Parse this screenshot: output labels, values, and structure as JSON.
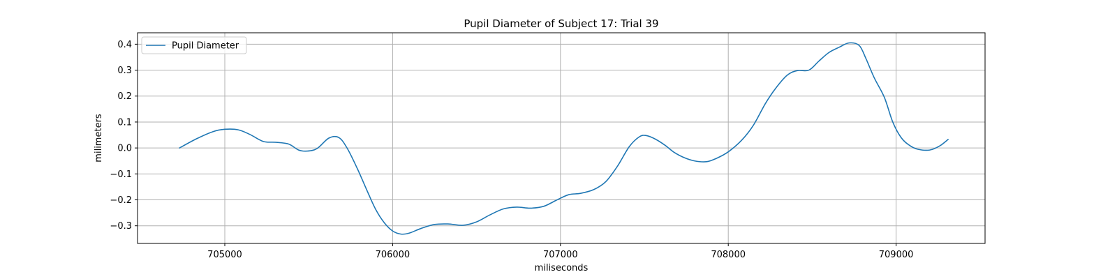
{
  "chart_data": {
    "type": "line",
    "title": "Pupil Diameter of Subject 17: Trial 39",
    "xlabel": "miliseconds",
    "ylabel": "milimeters",
    "xlim": [
      704480,
      709530
    ],
    "ylim": [
      -0.368,
      0.444
    ],
    "xticks": [
      705000,
      706000,
      707000,
      708000,
      709000
    ],
    "xtick_labels": [
      "705000",
      "706000",
      "707000",
      "708000",
      "709000"
    ],
    "yticks": [
      -0.3,
      -0.2,
      -0.1,
      0.0,
      0.1,
      0.2,
      0.3,
      0.4
    ],
    "ytick_labels": [
      "−0.3",
      "−0.2",
      "−0.1",
      "0.0",
      "0.1",
      "0.2",
      "0.3",
      "0.4"
    ],
    "grid": true,
    "legend_position": "top-left",
    "line_color": "#1f77b4",
    "series": [
      {
        "name": "Pupil Diameter",
        "x": [
          704730,
          704830,
          704930,
          705000,
          705080,
          705150,
          705230,
          705300,
          705380,
          705440,
          705490,
          705550,
          705620,
          705680,
          705730,
          705790,
          705850,
          705900,
          705950,
          706000,
          706050,
          706100,
          706170,
          706250,
          706330,
          706420,
          706500,
          706580,
          706660,
          706740,
          706820,
          706900,
          706980,
          707050,
          707120,
          707200,
          707270,
          707340,
          707410,
          707470,
          707510,
          707560,
          707620,
          707680,
          707740,
          707800,
          707870,
          707930,
          708000,
          708080,
          708150,
          708220,
          708280,
          708350,
          708410,
          708480,
          708540,
          708600,
          708660,
          708720,
          708780,
          708820,
          708870,
          708930,
          708980,
          709030,
          709080,
          709130,
          709200,
          709260,
          709310
        ],
        "y": [
          0.0,
          0.035,
          0.063,
          0.072,
          0.07,
          0.052,
          0.025,
          0.022,
          0.015,
          -0.008,
          -0.012,
          -0.002,
          0.038,
          0.04,
          -0.002,
          -0.08,
          -0.168,
          -0.238,
          -0.288,
          -0.32,
          -0.332,
          -0.328,
          -0.31,
          -0.295,
          -0.293,
          -0.298,
          -0.285,
          -0.258,
          -0.235,
          -0.228,
          -0.232,
          -0.225,
          -0.2,
          -0.18,
          -0.175,
          -0.16,
          -0.13,
          -0.07,
          0.005,
          0.043,
          0.048,
          0.036,
          0.012,
          -0.018,
          -0.038,
          -0.05,
          -0.053,
          -0.04,
          -0.015,
          0.03,
          0.088,
          0.17,
          0.228,
          0.28,
          0.298,
          0.3,
          0.335,
          0.368,
          0.388,
          0.405,
          0.395,
          0.345,
          0.27,
          0.195,
          0.1,
          0.04,
          0.01,
          -0.005,
          -0.008,
          0.008,
          0.033
        ]
      }
    ]
  }
}
